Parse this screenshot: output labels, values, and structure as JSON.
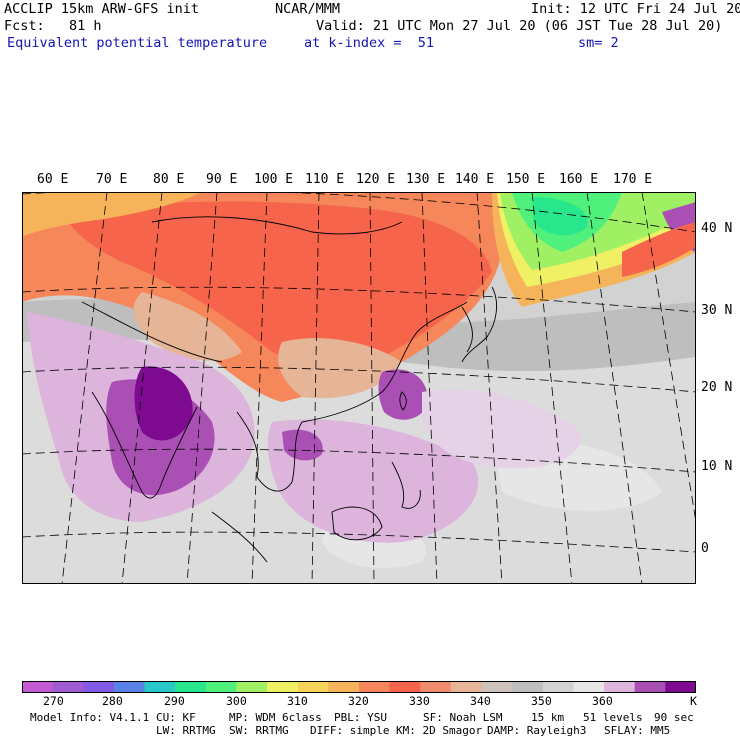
{
  "header": {
    "line1_left": "ACCLIP 15km ARW-GFS init",
    "line1_center": "NCAR/MMM",
    "line1_right": "Init: 12 UTC Fri 24 Jul 20",
    "fcst": "Fcst:   81 h",
    "valid": "Valid: 21 UTC Mon 27 Jul 20 (06 JST Tue 28 Jul 20)",
    "field": "Equivalent potential temperature",
    "level": "at k-index =  51",
    "smooth": "sm= 2"
  },
  "map": {
    "lon_labels": [
      "60 E",
      "70 E",
      "80 E",
      "90 E",
      "100 E",
      "110 E",
      "120 E",
      "130 E",
      "140 E",
      "150 E",
      "160 E",
      "170 E"
    ],
    "lat_labels": [
      "40 N",
      "30 N",
      "20 N",
      "10 N",
      "0"
    ]
  },
  "colorbar": {
    "colors": [
      "#c35ad2",
      "#a05ad2",
      "#825ae6",
      "#5a82e6",
      "#28c8c8",
      "#28e68c",
      "#50f07d",
      "#a0f064",
      "#f0f064",
      "#f5d25a",
      "#f5b45a",
      "#f5875a",
      "#f5644b",
      "#f08c6e",
      "#e6b496",
      "#cdc3bc",
      "#bebebe",
      "#d2d2d2",
      "#e6e6e6",
      "#dcb4dc",
      "#aa50b4",
      "#7d0a91"
    ],
    "labels": [
      "270",
      "280",
      "290",
      "300",
      "310",
      "320",
      "330",
      "340",
      "350",
      "360"
    ],
    "units": "K"
  },
  "footer": {
    "row1": [
      "Model Info: V4.1.1",
      "CU: KF",
      "MP: WDM 6class",
      "PBL: YSU",
      "SF: Noah LSM",
      "15 km",
      "51 levels",
      "90 sec"
    ],
    "row2": [
      "LW: RRTMG",
      "SW: RRTMG",
      "DIFF: simple",
      "KM: 2D Smagor",
      "DAMP: Rayleigh3",
      "SFLAY: MM5"
    ]
  }
}
